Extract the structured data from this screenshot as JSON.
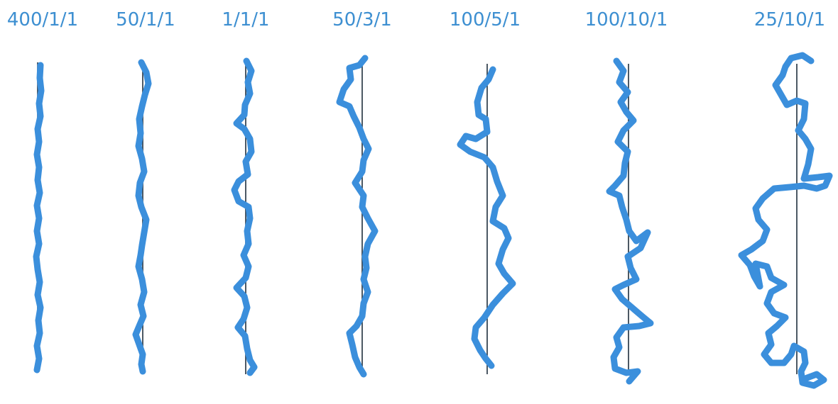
{
  "panels": [
    {
      "id": "p1",
      "label": "400/1/1"
    },
    {
      "id": "p2",
      "label": "50/1/1"
    },
    {
      "id": "p3",
      "label": "1/1/1"
    },
    {
      "id": "p4",
      "label": "50/3/1"
    },
    {
      "id": "p5",
      "label": "100/5/1"
    },
    {
      "id": "p6",
      "label": "100/10/1"
    },
    {
      "id": "p7",
      "label": "25/10/1"
    }
  ],
  "colors": {
    "walk": "#3b8fdc",
    "label": "#3d8fd1",
    "reference_line": "#1f2f3d",
    "background": "#ffffff"
  }
}
